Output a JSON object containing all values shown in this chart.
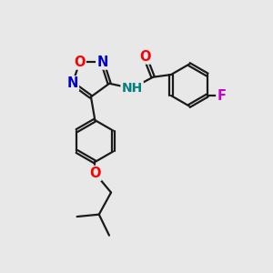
{
  "bg_color": "#e8e8e8",
  "bond_color": "#1a1a1a",
  "atom_colors": {
    "O": "#ff0000",
    "N": "#0000cc",
    "F": "#cc00cc",
    "H": "#008080",
    "C": "#1a1a1a"
  },
  "line_width": 1.6,
  "font_size": 10.5
}
